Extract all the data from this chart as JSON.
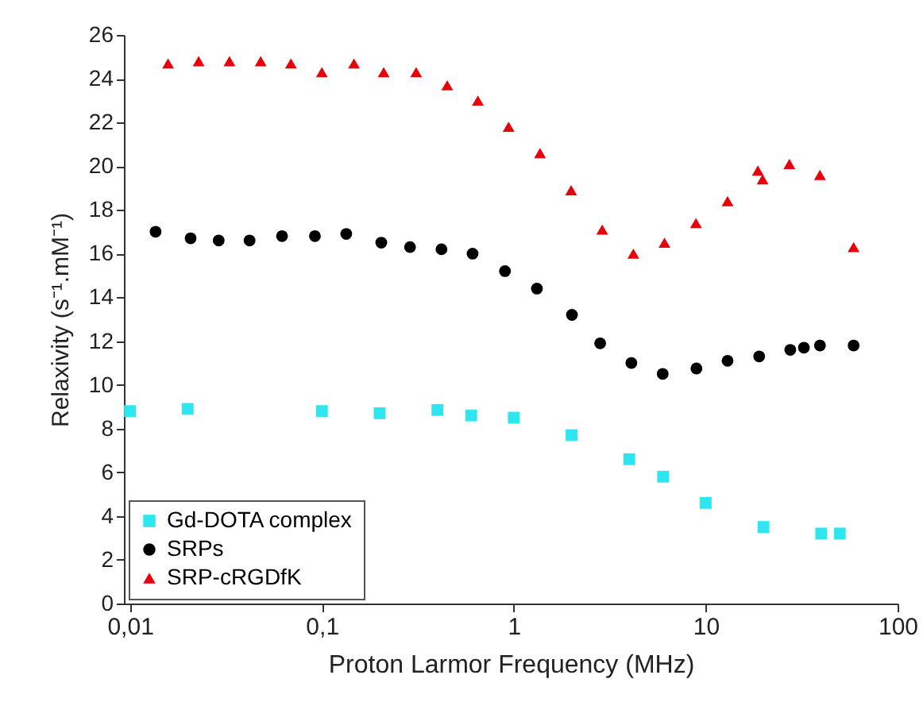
{
  "chart_data": {
    "type": "scatter",
    "xlabel": "Proton Larmor Frequency (MHz)",
    "ylabel": "Relaxivity (s⁻¹.mM⁻¹)",
    "log": "x",
    "grid": false,
    "legend": "bottom left",
    "xlim": [
      0.0093,
      100
    ],
    "xticks": [
      {
        "value": 0.01,
        "label": "0,01"
      },
      {
        "value": 0.1,
        "label": "0,1"
      },
      1,
      10,
      100
    ],
    "ylim": [
      0,
      26
    ],
    "yticks": [
      0,
      2,
      4,
      6,
      8,
      10,
      12,
      14,
      16,
      18,
      20,
      22,
      24,
      26
    ],
    "series": [
      {
        "name": "Gd-DOTA complex",
        "color": "#2ee6f0",
        "marker": "square",
        "x": [
          0.01,
          0.02,
          0.1,
          0.2,
          0.4,
          0.6,
          1,
          2,
          4,
          6,
          10,
          20,
          40,
          50
        ],
        "values": [
          8.8,
          8.9,
          8.8,
          8.7,
          8.85,
          8.6,
          8.5,
          7.7,
          6.6,
          5.8,
          4.6,
          3.5,
          3.2,
          3.2
        ]
      },
      {
        "name": "SRPs",
        "color": "#000000",
        "marker": "circle",
        "x": [
          0.0136,
          0.0207,
          0.029,
          0.042,
          0.062,
          0.092,
          0.134,
          0.204,
          0.288,
          0.42,
          0.61,
          0.9,
          1.32,
          2.01,
          2.82,
          4.1,
          5.97,
          8.95,
          13,
          19,
          27.6,
          32.5,
          39.4,
          59
        ],
        "values": [
          17.0,
          16.7,
          16.6,
          16.6,
          16.8,
          16.8,
          16.9,
          16.5,
          16.3,
          16.2,
          16.0,
          15.2,
          14.4,
          13.2,
          11.9,
          11.0,
          10.5,
          10.75,
          11.1,
          11.3,
          11.6,
          11.7,
          11.8,
          11.8
        ]
      },
      {
        "name": "SRP-cRGDfK",
        "color": "#e8000b",
        "marker": "triangle",
        "x": [
          0.0158,
          0.0228,
          0.033,
          0.048,
          0.069,
          0.1,
          0.147,
          0.21,
          0.31,
          0.45,
          0.65,
          0.94,
          1.37,
          1.99,
          2.89,
          4.2,
          6.1,
          8.9,
          13,
          18.7,
          19.8,
          27.3,
          39.4,
          59
        ],
        "values": [
          24.7,
          24.8,
          24.8,
          24.8,
          24.7,
          24.3,
          24.7,
          24.3,
          24.3,
          23.7,
          23.0,
          21.8,
          20.6,
          18.9,
          17.1,
          16.0,
          16.5,
          17.4,
          18.4,
          19.8,
          19.4,
          20.1,
          19.6,
          16.3
        ]
      }
    ]
  }
}
